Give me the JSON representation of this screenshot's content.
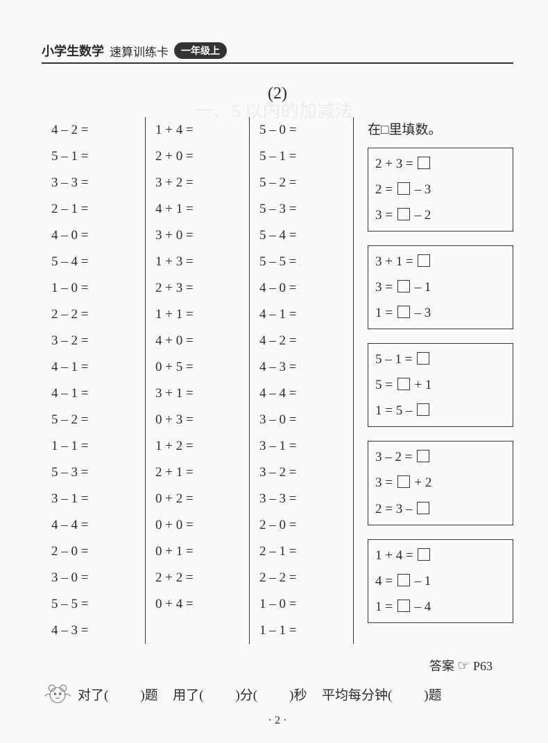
{
  "header": {
    "title_bold": "小学生数学",
    "title_light": "速算训练卡",
    "grade": "一年级上"
  },
  "subtitle": "(2)",
  "columns": {
    "col1": [
      "4 – 2 =",
      "5 – 1 =",
      "3 – 3 =",
      "2 – 1 =",
      "4 – 0 =",
      "5 – 4 =",
      "1 – 0 =",
      "2 – 2 =",
      "3 – 2 =",
      "4 – 1 =",
      "4 – 1 =",
      "5 – 2 =",
      "1 – 1 =",
      "5 – 3 =",
      "3 – 1 =",
      "4 – 4 =",
      "2 – 0 =",
      "3 – 0 =",
      "5 – 5 =",
      "4 – 3 ="
    ],
    "col2": [
      "1 + 4 =",
      "2 + 0 =",
      "3 + 2 =",
      "4 + 1 =",
      "3 + 0 =",
      "1 + 3 =",
      "2 + 3 =",
      "1 + 1 =",
      "4 + 0 =",
      "0 + 5 =",
      "3 + 1 =",
      "0 + 3 =",
      "1 + 2 =",
      "2 + 1 =",
      "0 + 2 =",
      "0 + 0 =",
      "0 + 1 =",
      "2 + 2 =",
      "0 + 4 ="
    ],
    "col3": [
      "5 – 0 =",
      "5 – 1 =",
      "5 – 2 =",
      "5 – 3 =",
      "5 – 4 =",
      "5 – 5 =",
      "4 – 0 =",
      "4 – 1 =",
      "4 – 2 =",
      "4 – 3 =",
      "4 – 4 =",
      "3 – 0 =",
      "3 – 1 =",
      "3 – 2 =",
      "3 – 3 =",
      "2 – 0 =",
      "2 – 1 =",
      "2 – 2 =",
      "1 – 0 =",
      "1 – 1 ="
    ]
  },
  "fill": {
    "title": "在□里填数。",
    "groups": [
      [
        "2 + 3 = □",
        "2 = □ – 3",
        "3 = □ – 2"
      ],
      [
        "3 + 1 = □",
        "3 = □ – 1",
        "1 = □ – 3"
      ],
      [
        "5 – 1 = □",
        "5 = □ + 1",
        "1 = 5 – □"
      ],
      [
        "3 – 2 = □",
        "3 = □ + 2",
        "2 = 3 – □"
      ],
      [
        "1 + 4 = □",
        "4 = □ – 1",
        "1 = □ – 4"
      ]
    ]
  },
  "answer_ref": {
    "label": "答案",
    "page": "P63"
  },
  "footer": {
    "correct": "对了(",
    "correct_unit": ")题",
    "used": "用了(",
    "min": ")分(",
    "sec": ")秒",
    "avg": "平均每分钟(",
    "avg_unit": ")题"
  },
  "page_number": "· 2 ·"
}
